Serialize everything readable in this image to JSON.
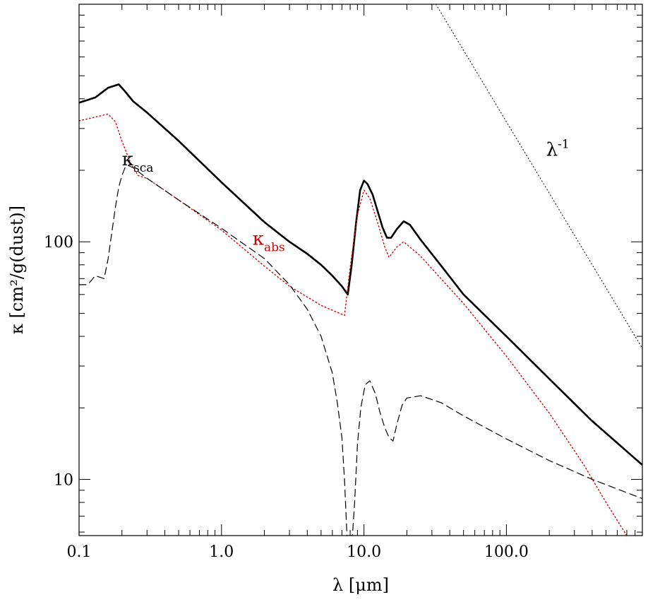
{
  "chart_data": {
    "type": "line",
    "title": "",
    "xlabel": "λ [μm]",
    "ylabel": "κ [cm²/g(dust)]",
    "x_scale": "log",
    "y_scale": "log",
    "xlim": [
      0.1,
      900
    ],
    "ylim": [
      5.8,
      1000
    ],
    "grid": false,
    "x_ticks": [
      {
        "value": 0.1,
        "label": "0.1"
      },
      {
        "value": 1.0,
        "label": "1.0"
      },
      {
        "value": 10.0,
        "label": "10.0"
      },
      {
        "value": 100.0,
        "label": "100.0"
      }
    ],
    "y_ticks": [
      {
        "value": 10,
        "label": "10"
      },
      {
        "value": 100,
        "label": "100"
      }
    ],
    "annotations": [
      {
        "id": "sca",
        "symbol": "κ",
        "subscript": "sca",
        "superscript": "",
        "color": "#000000",
        "x": 0.2,
        "y": 210
      },
      {
        "id": "abs",
        "symbol": "κ",
        "subscript": "abs",
        "superscript": "",
        "color": "#d40000",
        "x": 1.65,
        "y": 97
      },
      {
        "id": "ref",
        "symbol": "λ",
        "subscript": "",
        "superscript": "-1",
        "color": "#000000",
        "x": 190,
        "y": 230
      }
    ],
    "series": [
      {
        "id": "total",
        "style": "solid",
        "color": "#000000",
        "x": [
          0.1,
          0.13,
          0.16,
          0.19,
          0.21,
          0.24,
          0.3,
          0.5,
          1.0,
          2.0,
          3.0,
          4.0,
          5.0,
          6.0,
          7.0,
          7.7,
          8.2,
          8.8,
          9.4,
          10.0,
          10.6,
          11.5,
          12.5,
          13.5,
          14.5,
          15.5,
          17.0,
          19.0,
          21.0,
          25.0,
          35.0,
          50.0,
          100.0,
          200.0,
          400.0,
          900.0
        ],
        "y": [
          385,
          405,
          445,
          460,
          430,
          390,
          350,
          266,
          178,
          121,
          100,
          89,
          80,
          72,
          65,
          60,
          80,
          120,
          165,
          181,
          175,
          158,
          134,
          115,
          104,
          104,
          113,
          122,
          118,
          102,
          79,
          60,
          40,
          26.5,
          17.6,
          11.5
        ]
      },
      {
        "id": "abs",
        "style": "dotted",
        "color": "#d40000",
        "x": [
          0.1,
          0.13,
          0.16,
          0.18,
          0.2,
          0.23,
          0.26,
          0.3,
          0.5,
          1.0,
          2.0,
          3.0,
          5.0,
          7.3,
          8.0,
          9.0,
          10.0,
          11.0,
          12.5,
          14.0,
          15.0,
          17.0,
          19.0,
          25.0,
          50.0,
          100.0,
          200.0,
          350.0,
          500.0,
          700.0
        ],
        "y": [
          323,
          335,
          345,
          320,
          265,
          215,
          190,
          185,
          150,
          112,
          79,
          65,
          54,
          49,
          78,
          130,
          165,
          152,
          120,
          95,
          86,
          95,
          100,
          87,
          55,
          33,
          19,
          11.5,
          8,
          5.8
        ]
      },
      {
        "id": "sca",
        "style": "dashed",
        "color": "#000000",
        "x": [
          0.1,
          0.115,
          0.13,
          0.15,
          0.16,
          0.17,
          0.18,
          0.19,
          0.2,
          0.21,
          0.22,
          0.24,
          0.3,
          0.5,
          1.0,
          2.0,
          3.0,
          4.0,
          5.0,
          6.0,
          6.5,
          7.0,
          7.3,
          7.6,
          7.9,
          8.3,
          8.6,
          9.0,
          9.5,
          10.2,
          11.0,
          12.0,
          13.0,
          14.0,
          15.0,
          16.0,
          17.0,
          18.5,
          20.0,
          25.0,
          35.0,
          50.0,
          100.0,
          200.0,
          400.0,
          900.0
        ],
        "y": [
          66,
          66,
          72,
          70,
          85,
          110,
          140,
          170,
          190,
          205,
          210,
          205,
          185,
          150,
          114,
          85,
          66,
          52,
          40,
          28,
          21,
          15,
          10,
          5.8,
          5.8,
          5.8,
          8,
          14,
          20,
          25,
          26,
          23,
          19,
          16.5,
          15,
          14.5,
          17,
          20.5,
          22,
          22.5,
          21,
          18.5,
          14.8,
          12,
          10,
          8.3
        ]
      },
      {
        "id": "ref",
        "style": "dotted",
        "color": "#000000",
        "x": [
          32,
          900
        ],
        "y": [
          1000,
          35.6
        ]
      }
    ]
  }
}
